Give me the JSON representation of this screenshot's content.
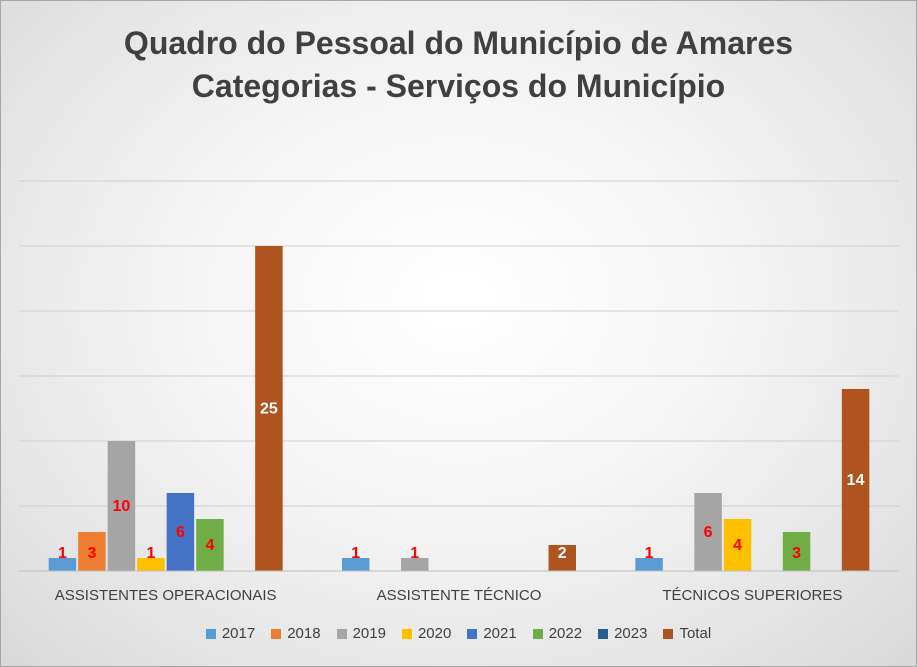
{
  "chart_data": {
    "type": "bar",
    "title": "Quadro do Pessoal do Município de Amares",
    "subtitle": "Categorias - Serviços do Município",
    "categories": [
      "ASSISTENTES OPERACIONAIS",
      "ASSISTENTE TÉCNICO",
      "TÉCNICOS SUPERIORES"
    ],
    "series": [
      {
        "name": "2017",
        "color": "#5b9bd5",
        "values": [
          1,
          1,
          1
        ],
        "label_color": "#ff0000"
      },
      {
        "name": "2018",
        "color": "#ed7d31",
        "values": [
          3,
          0,
          0
        ],
        "label_color": "#ff0000"
      },
      {
        "name": "2019",
        "color": "#a5a5a5",
        "values": [
          10,
          1,
          6
        ],
        "label_color": "#ff0000"
      },
      {
        "name": "2020",
        "color": "#ffc000",
        "values": [
          1,
          0,
          4
        ],
        "label_color": "#ff0000"
      },
      {
        "name": "2021",
        "color": "#4472c4",
        "values": [
          6,
          0,
          0
        ],
        "label_color": "#ff0000"
      },
      {
        "name": "2022",
        "color": "#70ad47",
        "values": [
          4,
          0,
          3
        ],
        "label_color": "#ff0000"
      },
      {
        "name": "2023",
        "color": "#255e91",
        "values": [
          0,
          0,
          0
        ],
        "label_color": "#ff0000"
      },
      {
        "name": "Total",
        "color": "#b0541f",
        "values": [
          25,
          2,
          14
        ],
        "label_color": "#ffffff"
      }
    ],
    "ylim": [
      0,
      30
    ],
    "grid": true,
    "legend_position": "bottom"
  }
}
